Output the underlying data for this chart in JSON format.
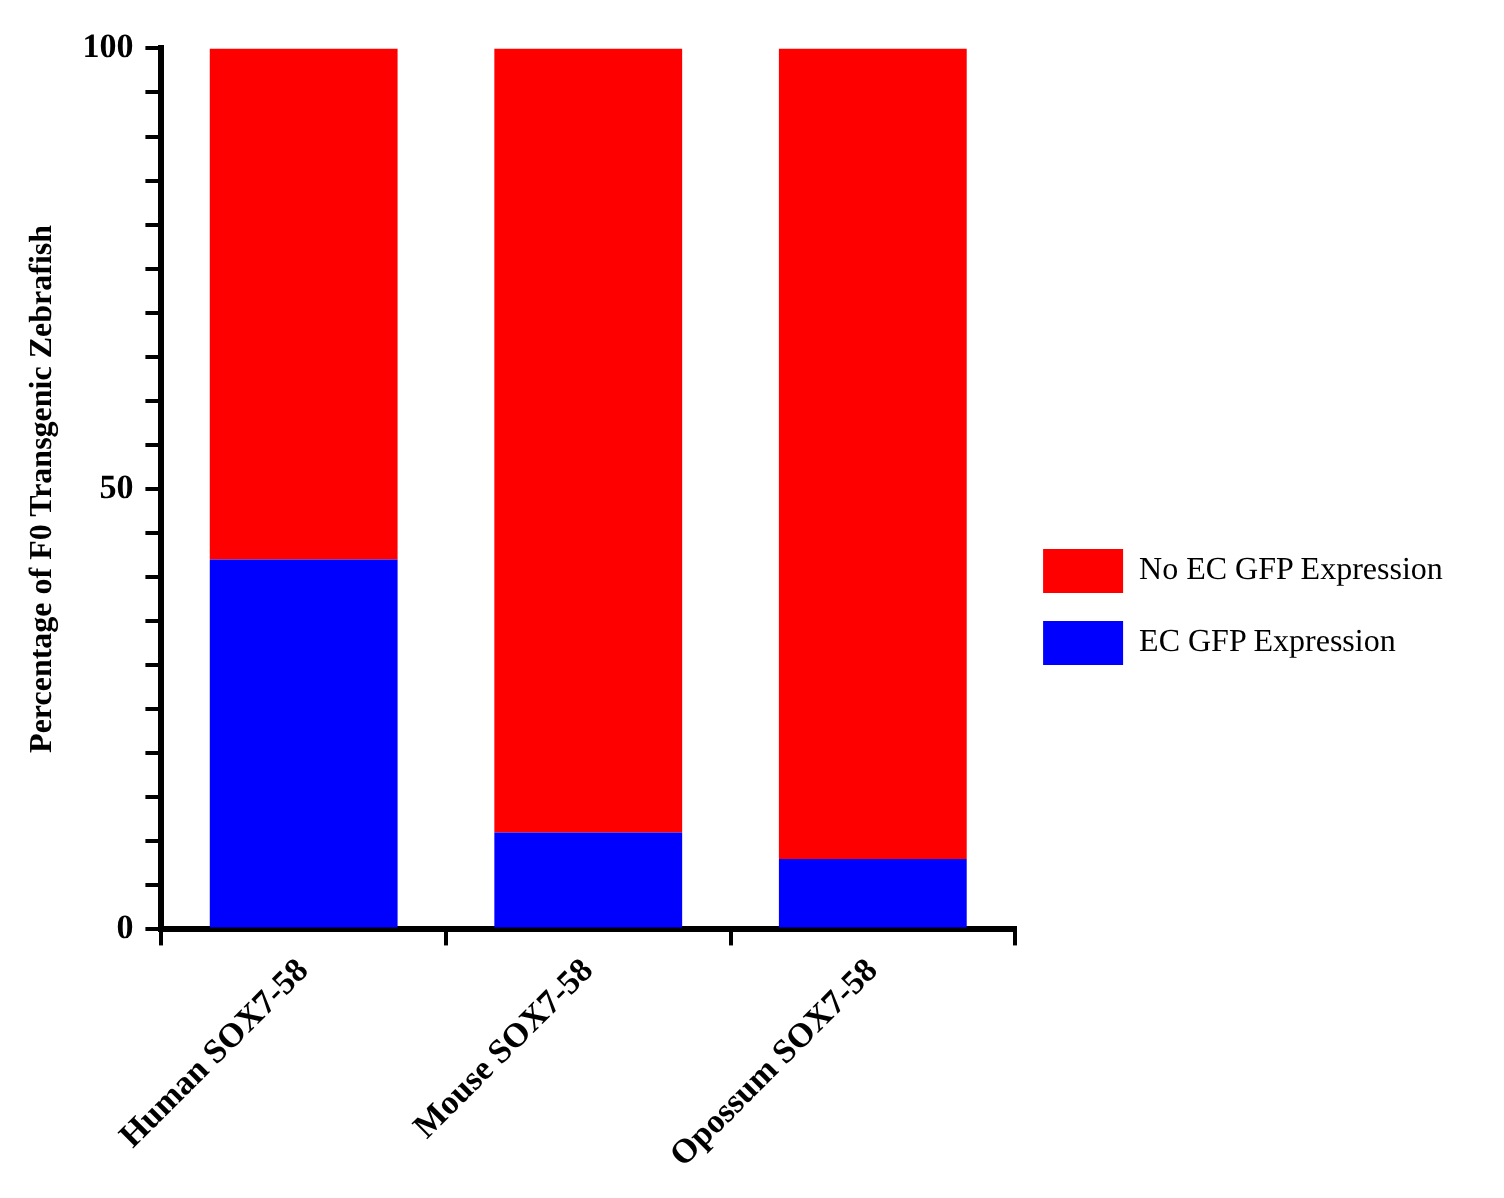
{
  "chart_data": {
    "type": "bar",
    "stacked": true,
    "ylabel": "Percentage of F0 Transgenic Zebrafish",
    "categories": [
      "Human SOX7-58",
      "Mouse SOX7-58",
      "Opossum SOX7-58"
    ],
    "series": [
      {
        "name": "EC GFP Expression",
        "color": "#0000ff",
        "values": [
          42,
          11,
          8
        ]
      },
      {
        "name": "No EC GFP Expression",
        "color": "#ff0000",
        "values": [
          58,
          89,
          92
        ]
      }
    ],
    "ylim": [
      0,
      100
    ],
    "yticks": [
      0,
      {
        "value": 5,
        "label": null
      },
      {
        "value": 10,
        "label": null
      },
      {
        "value": 15,
        "label": null
      },
      {
        "value": 20,
        "label": null
      },
      {
        "value": 25,
        "label": null
      },
      {
        "value": 30,
        "label": null
      },
      {
        "value": 35,
        "label": null
      },
      {
        "value": 40,
        "label": null
      },
      {
        "value": 45,
        "label": null
      },
      50,
      {
        "value": 55,
        "label": null
      },
      {
        "value": 60,
        "label": null
      },
      {
        "value": 65,
        "label": null
      },
      {
        "value": 70,
        "label": null
      },
      {
        "value": 75,
        "label": null
      },
      {
        "value": 80,
        "label": null
      },
      {
        "value": 85,
        "label": null
      },
      {
        "value": 90,
        "label": null
      },
      {
        "value": 95,
        "label": null
      },
      100
    ],
    "grid": false,
    "legend": "right"
  }
}
